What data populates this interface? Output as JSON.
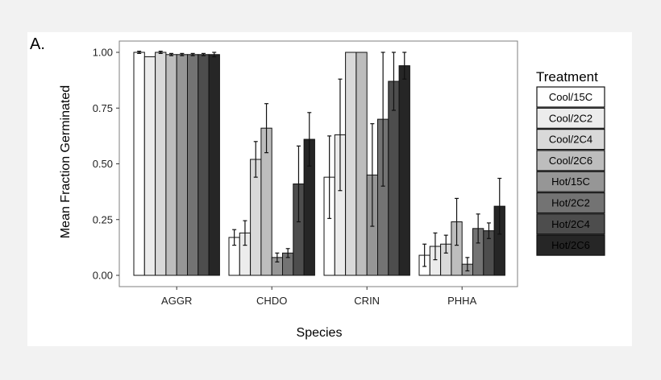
{
  "panel_label": "A.",
  "chart_data": {
    "type": "bar",
    "xlabel": "Species",
    "ylabel": "Mean Fraction Germinated",
    "categories": [
      "AGGR",
      "CHDO",
      "CRIN",
      "PHHA"
    ],
    "yticks": [
      "0.00",
      "0.25",
      "0.50",
      "0.75",
      "1.00"
    ],
    "ylim": [
      0,
      1.05
    ],
    "grid": false,
    "legend": {
      "title": "Treatment",
      "position": "right"
    },
    "series": [
      {
        "name": "Cool/15C",
        "color": "#ffffff",
        "values": [
          1.0,
          0.17,
          0.44,
          0.09
        ],
        "errors": [
          0.005,
          0.035,
          0.185,
          0.05
        ]
      },
      {
        "name": "Cool/2C2",
        "color": "#ececec",
        "values": [
          0.98,
          0.19,
          0.63,
          0.13
        ],
        "errors": [
          0.0,
          0.055,
          0.25,
          0.06
        ]
      },
      {
        "name": "Cool/2C4",
        "color": "#d9d9d9",
        "values": [
          1.0,
          0.52,
          1.0,
          0.14
        ],
        "errors": [
          0.005,
          0.08,
          0.0,
          0.04
        ]
      },
      {
        "name": "Cool/2C6",
        "color": "#bdbdbd",
        "values": [
          0.99,
          0.66,
          1.0,
          0.24
        ],
        "errors": [
          0.005,
          0.11,
          0.0,
          0.105
        ]
      },
      {
        "name": "Hot/15C",
        "color": "#969696",
        "values": [
          0.99,
          0.08,
          0.45,
          0.05
        ],
        "errors": [
          0.005,
          0.02,
          0.23,
          0.03
        ]
      },
      {
        "name": "Hot/2C2",
        "color": "#737373",
        "values": [
          0.99,
          0.1,
          0.7,
          0.21
        ],
        "errors": [
          0.005,
          0.02,
          0.3,
          0.065
        ]
      },
      {
        "name": "Hot/2C4",
        "color": "#4d4d4d",
        "values": [
          0.99,
          0.41,
          0.87,
          0.2
        ],
        "errors": [
          0.005,
          0.17,
          0.13,
          0.035
        ]
      },
      {
        "name": "Hot/2C6",
        "color": "#262626",
        "values": [
          0.99,
          0.61,
          0.94,
          0.31
        ],
        "errors": [
          0.01,
          0.12,
          0.06,
          0.125
        ]
      }
    ]
  }
}
